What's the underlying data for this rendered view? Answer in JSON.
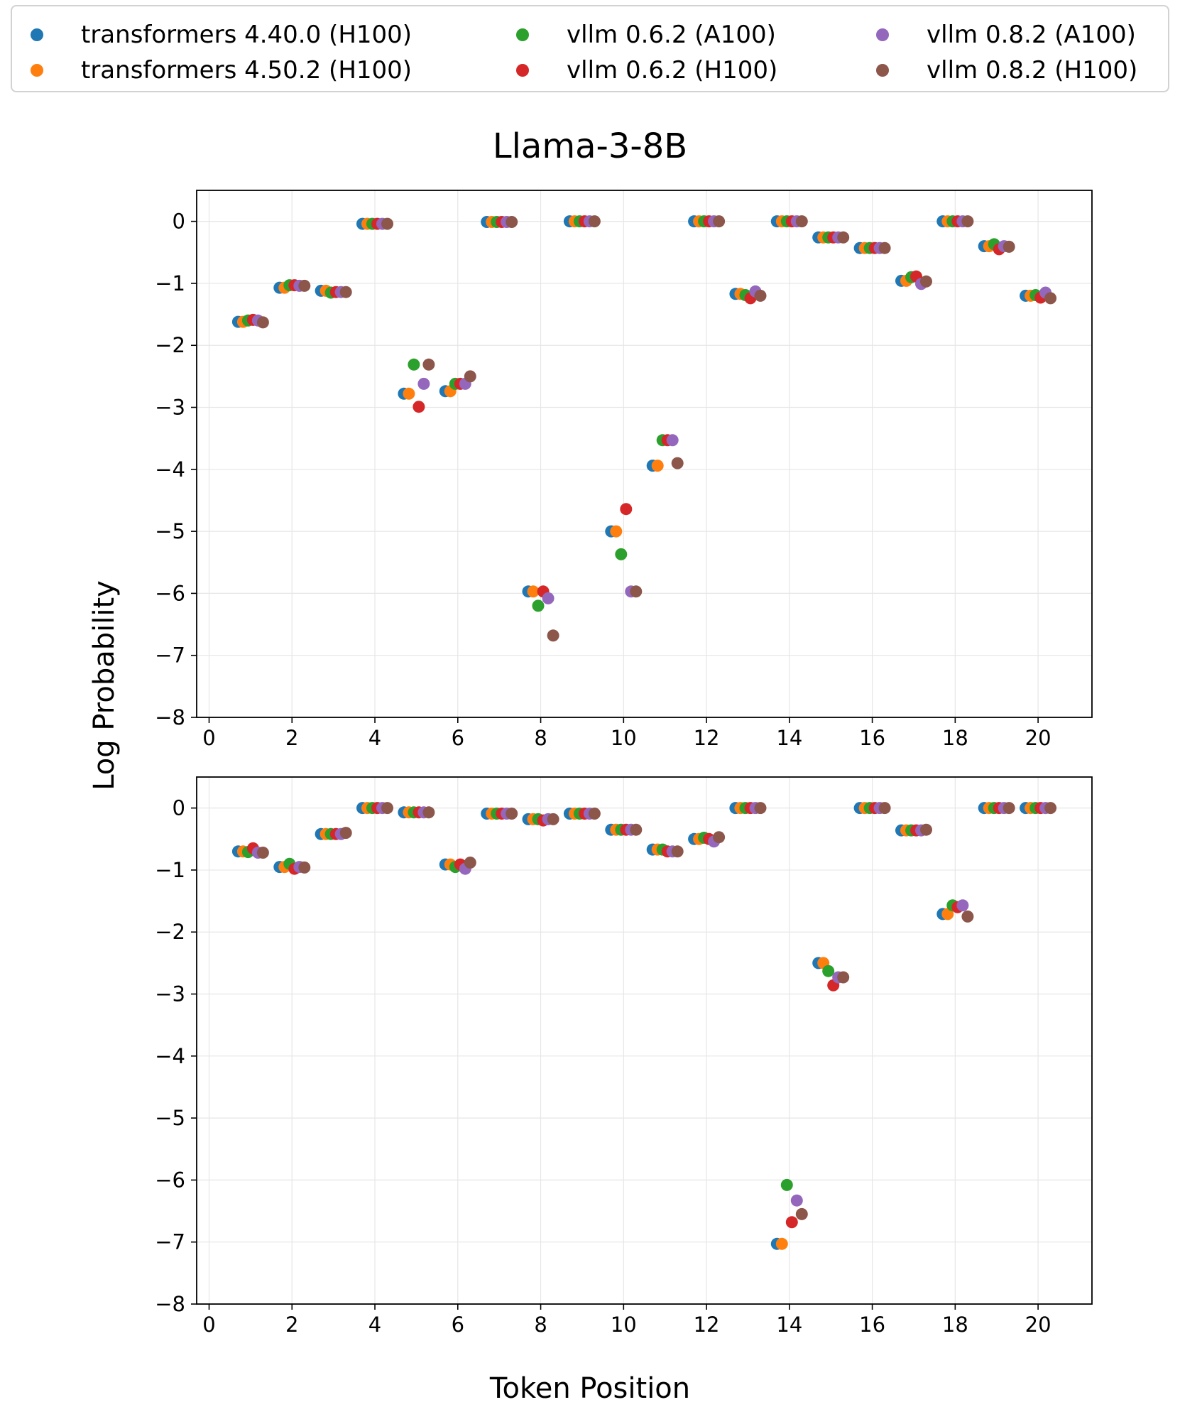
{
  "chart_data": {
    "type": "scatter",
    "title": "Llama-3-8B",
    "xlabel": "Token Position",
    "ylabel": "Log Probability",
    "xlim": [
      -0.3,
      21.3
    ],
    "ylim": [
      -8,
      0.5
    ],
    "xticks": [
      0,
      2,
      4,
      6,
      8,
      10,
      12,
      14,
      16,
      18,
      20
    ],
    "yticks": [
      0,
      -1,
      -2,
      -3,
      -4,
      -5,
      -6,
      -7,
      -8
    ],
    "xtick_labels": [
      "0",
      "2",
      "4",
      "6",
      "8",
      "10",
      "12",
      "14",
      "16",
      "18",
      "20"
    ],
    "ytick_labels": [
      "0",
      "−1",
      "−2",
      "−3",
      "−4",
      "−5",
      "−6",
      "−7",
      "−8"
    ],
    "grid": true,
    "legend_position": "top",
    "x": [
      1,
      2,
      3,
      4,
      5,
      6,
      7,
      8,
      9,
      10,
      11,
      12,
      13,
      14,
      15,
      16,
      17,
      18,
      19,
      20
    ],
    "series": [
      {
        "name": "transformers 4.40.0 (H100)",
        "color": "#1f77b4"
      },
      {
        "name": "transformers 4.50.2 (H100)",
        "color": "#ff7f0e"
      },
      {
        "name": "vllm 0.6.2 (A100)",
        "color": "#2ca02c"
      },
      {
        "name": "vllm 0.6.2 (H100)",
        "color": "#d62728"
      },
      {
        "name": "vllm 0.8.2 (A100)",
        "color": "#9467bd"
      },
      {
        "name": "vllm 0.8.2 (H100)",
        "color": "#8c564b"
      }
    ],
    "panels": [
      {
        "values": [
          [
            -1.62,
            -1.07,
            -1.12,
            -0.04,
            -2.78,
            -2.74,
            -0.01,
            -5.97,
            0.0,
            -5.0,
            -3.94,
            0.0,
            -1.17,
            0.0,
            -0.26,
            -0.43,
            -0.96,
            0.0,
            -0.4,
            -1.2
          ],
          [
            -1.62,
            -1.07,
            -1.12,
            -0.04,
            -2.78,
            -2.74,
            -0.01,
            -5.97,
            0.0,
            -5.0,
            -3.94,
            0.0,
            -1.17,
            0.0,
            -0.26,
            -0.43,
            -0.96,
            0.0,
            -0.4,
            -1.2
          ],
          [
            -1.6,
            -1.03,
            -1.15,
            -0.04,
            -2.31,
            -2.62,
            -0.01,
            -6.2,
            0.0,
            -5.37,
            -3.53,
            0.0,
            -1.19,
            0.0,
            -0.26,
            -0.43,
            -0.9,
            0.0,
            -0.37,
            -1.19
          ],
          [
            -1.59,
            -1.03,
            -1.14,
            -0.04,
            -2.99,
            -2.62,
            -0.01,
            -5.97,
            0.0,
            -4.64,
            -3.53,
            0.0,
            -1.24,
            0.0,
            -0.26,
            -0.43,
            -0.89,
            0.0,
            -0.45,
            -1.23
          ],
          [
            -1.6,
            -1.04,
            -1.14,
            -0.04,
            -2.62,
            -2.62,
            -0.01,
            -6.08,
            0.0,
            -5.97,
            -3.53,
            0.0,
            -1.13,
            0.0,
            -0.26,
            -0.43,
            -1.01,
            0.0,
            -0.4,
            -1.15
          ],
          [
            -1.63,
            -1.04,
            -1.14,
            -0.04,
            -2.31,
            -2.5,
            -0.01,
            -6.68,
            0.0,
            -5.97,
            -3.9,
            0.0,
            -1.2,
            0.0,
            -0.26,
            -0.43,
            -0.97,
            0.0,
            -0.41,
            -1.24
          ]
        ]
      },
      {
        "values": [
          [
            -0.7,
            -0.95,
            -0.42,
            0.0,
            -0.07,
            -0.91,
            -0.09,
            -0.18,
            -0.09,
            -0.35,
            -0.67,
            -0.5,
            0.0,
            -7.03,
            -2.5,
            0.0,
            -0.36,
            -1.71,
            0.0,
            0.0
          ],
          [
            -0.7,
            -0.95,
            -0.42,
            0.0,
            -0.07,
            -0.91,
            -0.09,
            -0.18,
            -0.09,
            -0.35,
            -0.67,
            -0.5,
            0.0,
            -7.03,
            -2.5,
            0.0,
            -0.36,
            -1.71,
            0.0,
            0.0
          ],
          [
            -0.71,
            -0.9,
            -0.42,
            0.0,
            -0.07,
            -0.95,
            -0.09,
            -0.18,
            -0.09,
            -0.35,
            -0.67,
            -0.48,
            0.0,
            -6.08,
            -2.63,
            0.0,
            -0.36,
            -1.57,
            0.0,
            0.0
          ],
          [
            -0.65,
            -0.98,
            -0.42,
            0.0,
            -0.07,
            -0.91,
            -0.09,
            -0.2,
            -0.09,
            -0.35,
            -0.7,
            -0.5,
            0.0,
            -6.68,
            -2.86,
            0.0,
            -0.36,
            -1.6,
            0.0,
            0.0
          ],
          [
            -0.72,
            -0.95,
            -0.42,
            0.0,
            -0.07,
            -0.98,
            -0.09,
            -0.18,
            -0.09,
            -0.35,
            -0.7,
            -0.54,
            0.0,
            -6.33,
            -2.73,
            0.0,
            -0.36,
            -1.57,
            0.0,
            0.0
          ],
          [
            -0.72,
            -0.96,
            -0.4,
            0.0,
            -0.07,
            -0.88,
            -0.09,
            -0.18,
            -0.09,
            -0.35,
            -0.7,
            -0.47,
            0.0,
            -6.55,
            -2.73,
            0.0,
            -0.35,
            -1.75,
            0.0,
            0.0
          ]
        ]
      }
    ]
  }
}
